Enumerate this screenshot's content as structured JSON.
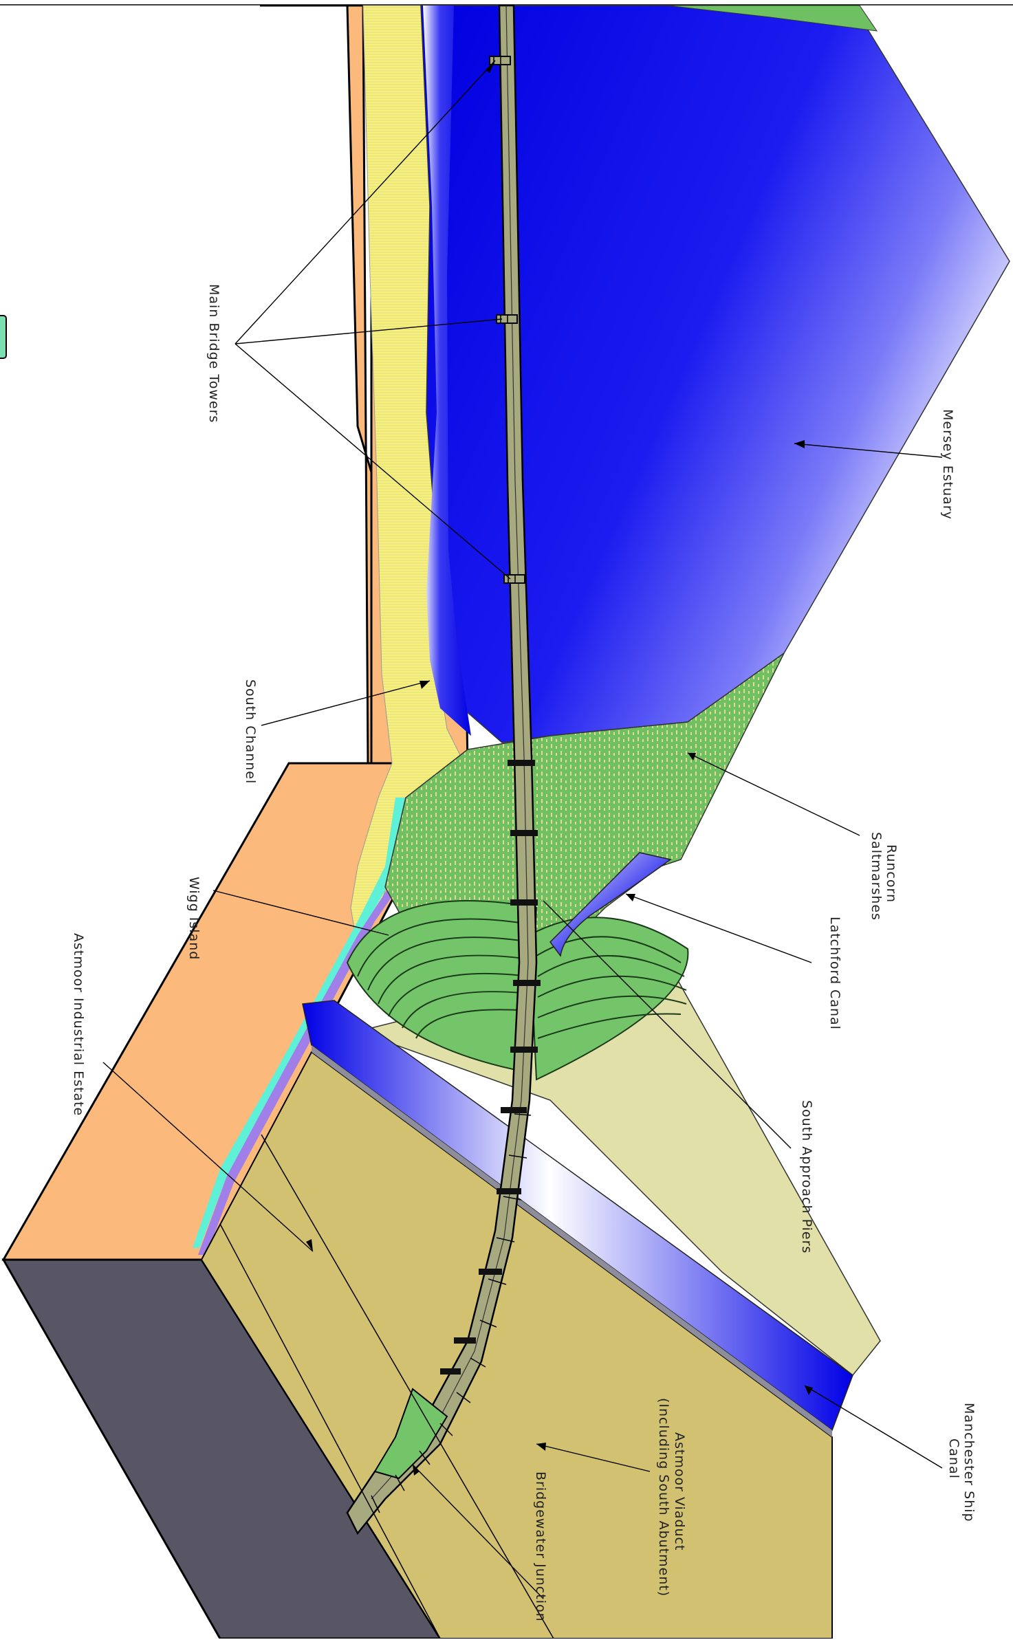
{
  "labels": {
    "main_bridge_towers": "Main Bridge Towers",
    "mersey_estuary": "Mersey Estuary",
    "south_channel": "South Channel",
    "runcorn_saltmarshes_1": "Runcorn",
    "runcorn_saltmarshes_2": "Saltmarshes",
    "wigg_island": "Wigg Island",
    "latchford_canal": "Latchford Canal",
    "astmoor_industrial_estate": "Astmoor Industrial Estate",
    "south_approach_piers": "South Approach Piers",
    "manchester_ship_canal_1": "Manchester Ship",
    "manchester_ship_canal_2": "Canal",
    "astmoor_viaduct_1": "Astmoor Viaduct",
    "astmoor_viaduct_2": "(Including South Abutment)",
    "bridgewater_junction": "Bridgewater Junction"
  },
  "colors": {
    "water_deep": "#0a0ae6",
    "water_light": "#ffffff",
    "land_orange": "#fbb97c",
    "sand_yellow": "#f7f17a",
    "marsh_green": "#6fbf63",
    "embankment_green": "#74c56a",
    "cut_fill_khaki": "#d2c170",
    "pale_ground": "#e0e0a8",
    "slab_side": "#585665",
    "bridge_deck": "#a7a97f",
    "cyan_edge": "#5ff0d8",
    "purple_edge": "#a080e8"
  }
}
